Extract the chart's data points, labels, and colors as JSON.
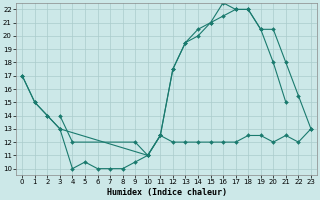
{
  "line1_x": [
    0,
    1,
    2,
    3,
    4,
    5,
    6,
    7,
    8,
    9,
    10,
    11,
    12,
    13,
    14,
    15,
    16,
    17,
    18,
    19,
    20,
    21,
    22,
    23
  ],
  "line1_y": [
    17,
    15,
    14,
    13,
    10,
    10.5,
    10,
    10,
    10,
    10.5,
    11,
    12.5,
    12,
    12,
    12,
    12,
    12,
    12,
    12.5,
    12.5,
    12,
    12.5,
    12,
    13
  ],
  "line2_x": [
    3,
    4,
    9,
    10,
    11,
    12,
    13,
    14,
    15,
    16,
    17,
    18,
    19,
    20,
    21
  ],
  "line2_y": [
    14,
    12,
    12,
    11,
    12.5,
    17.5,
    19.5,
    20,
    21,
    22.5,
    22,
    22,
    20.5,
    18,
    15
  ],
  "line3_x": [
    0,
    1,
    2,
    3,
    10,
    11,
    12,
    13,
    14,
    15,
    16,
    17,
    18,
    19,
    20,
    21,
    22,
    23
  ],
  "line3_y": [
    17,
    15,
    14,
    13,
    11,
    12.5,
    17.5,
    19.5,
    20.5,
    21,
    21.5,
    22,
    22,
    20.5,
    20.5,
    18,
    15.5,
    13
  ],
  "bg_color": "#cce8e8",
  "line_color": "#1a7a6e",
  "grid_color": "#aacccc",
  "xlabel": "Humidex (Indice chaleur)",
  "ylim_min": 10,
  "ylim_max": 22,
  "xlim_min": 0,
  "xlim_max": 23,
  "yticks": [
    10,
    11,
    12,
    13,
    14,
    15,
    16,
    17,
    18,
    19,
    20,
    21,
    22
  ],
  "xticks": [
    0,
    1,
    2,
    3,
    4,
    5,
    6,
    7,
    8,
    9,
    10,
    11,
    12,
    13,
    14,
    15,
    16,
    17,
    18,
    19,
    20,
    21,
    22,
    23
  ],
  "tick_fontsize": 5,
  "xlabel_fontsize": 6
}
